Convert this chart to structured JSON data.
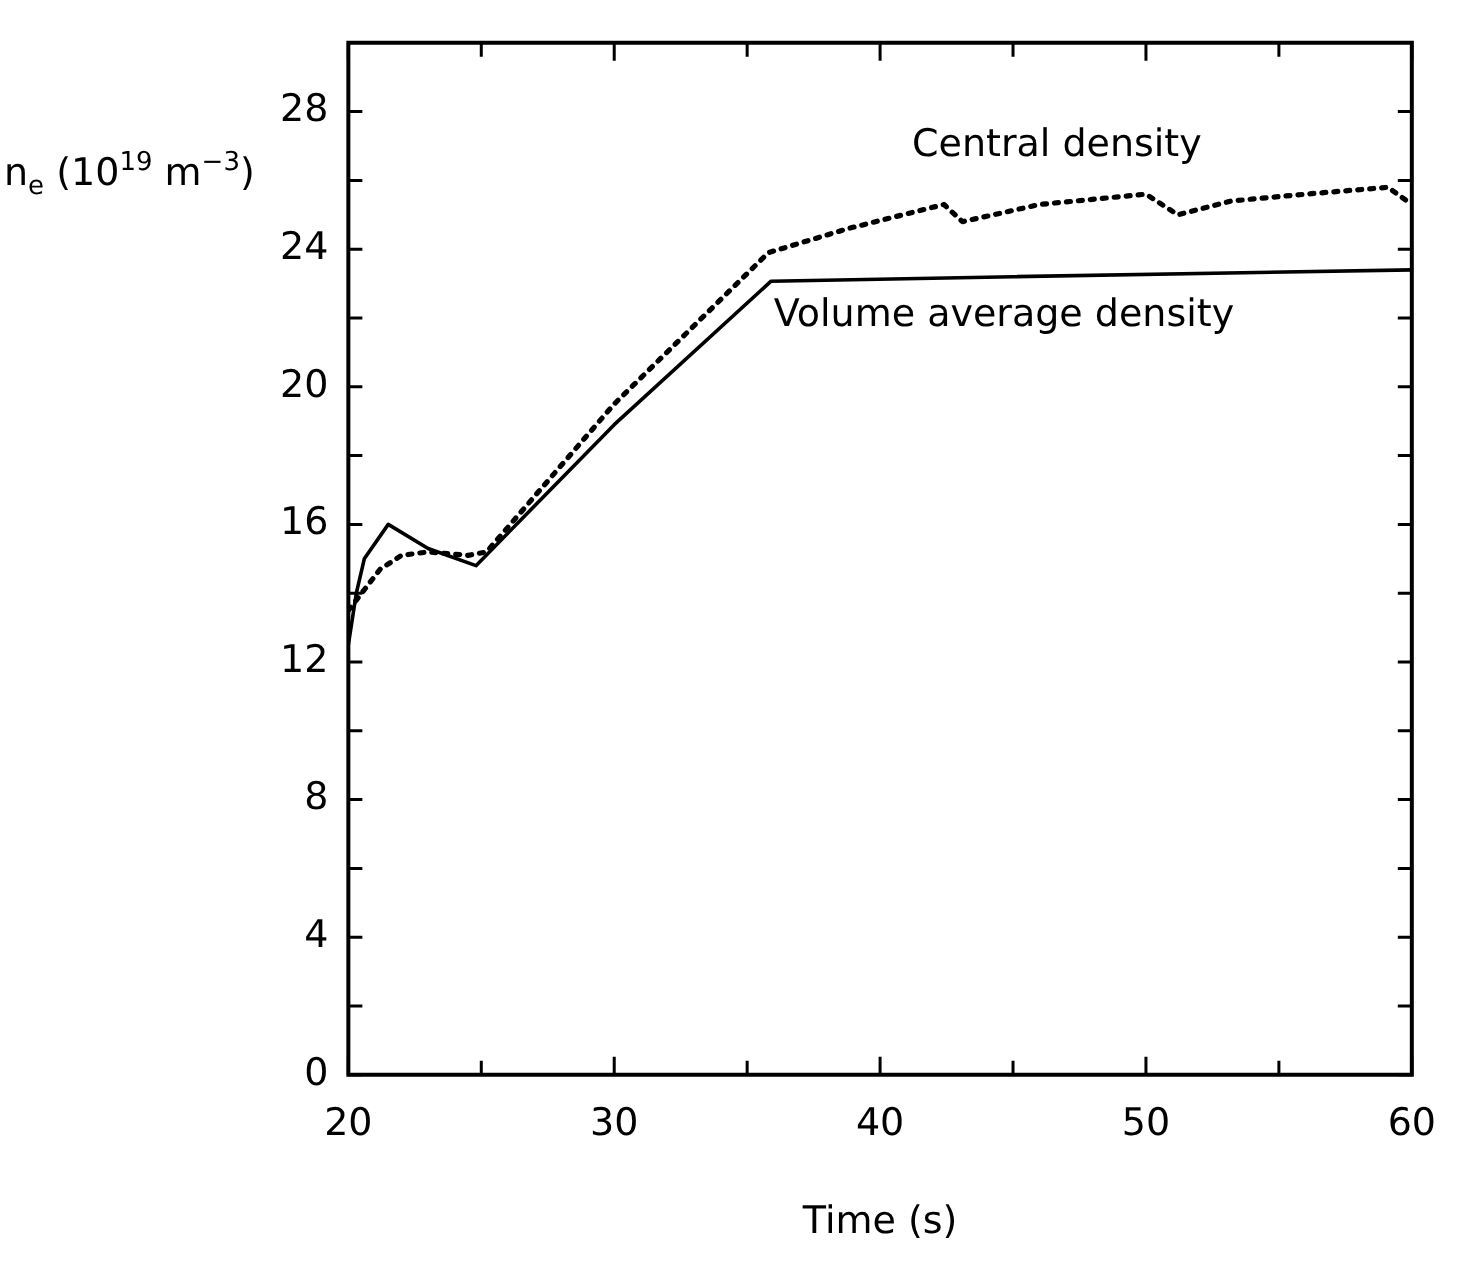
{
  "chart_data": {
    "type": "line",
    "xlabel": "Time (s)",
    "ylabel": "n$_{e}$ (10$^{19}$ m$^{−3}$)",
    "xlim": [
      20,
      60
    ],
    "xticks": [
      20,
      {
        "value": 25,
        "label": null
      },
      30,
      {
        "value": 35,
        "label": null
      },
      40,
      {
        "value": 45,
        "label": null
      },
      50,
      {
        "value": 55,
        "label": null
      },
      60
    ],
    "ylim": [
      0,
      30
    ],
    "yticks": [
      0,
      {
        "value": 2,
        "label": null
      },
      4,
      {
        "value": 6,
        "label": null
      },
      8,
      {
        "value": 10,
        "label": null
      },
      12,
      {
        "value": 14,
        "label": null
      },
      16,
      {
        "value": 18,
        "label": null
      },
      20,
      {
        "value": 22,
        "label": null
      },
      24,
      {
        "value": 26,
        "label": null
      },
      28
    ],
    "grid": false,
    "legend": false,
    "marker": "none",
    "series": [
      {
        "name": "Central density",
        "color": "#000000",
        "line_style": "dotted",
        "x": [
          20,
          20.3,
          20.7,
          21.2,
          22,
          23,
          24.5,
          25.2,
          30,
          35.8,
          38.8,
          42.4,
          43.1,
          46,
          50,
          51.2,
          53.2,
          56,
          59.1,
          60
        ],
        "values": [
          13.5,
          13.8,
          14.2,
          14.7,
          15.1,
          15.2,
          15.1,
          15.2,
          19.5,
          23.9,
          24.6,
          25.3,
          24.8,
          25.3,
          25.6,
          25.0,
          25.4,
          25.6,
          25.8,
          25.3
        ]
      },
      {
        "name": "Volume average density",
        "color": "#000000",
        "line_style": "solid",
        "x": [
          20,
          20.3,
          20.6,
          21.5,
          23,
          24.8,
          30,
          35.9,
          45,
          60
        ],
        "values": [
          12.5,
          14.0,
          15.0,
          16.0,
          15.3,
          14.8,
          18.9,
          23.07,
          23.2,
          23.4
        ]
      }
    ]
  }
}
